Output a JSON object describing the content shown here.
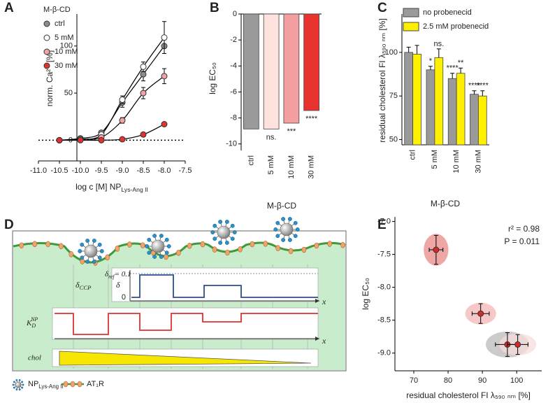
{
  "chart_data": [
    {
      "type": "line",
      "panel": "A",
      "xlabel": {
        "text": "log c [M] NP",
        "subscript": "Lys-Ang II"
      },
      "ylabel": "norm. Ca²⁺ [%]",
      "legend_title": "M-β-CD",
      "x": [
        -10.5,
        -10,
        -9.5,
        -9,
        -8.5,
        -8
      ],
      "series": [
        {
          "name": "ctrl",
          "color": "#8c8c8c",
          "values": [
            0,
            2,
            8,
            40,
            70,
            100
          ],
          "errors": [
            1,
            1,
            2,
            5,
            7,
            8
          ]
        },
        {
          "name": "5 mM",
          "color": "#ffffff",
          "values": [
            0,
            1,
            6,
            43,
            78,
            109
          ],
          "errors": [
            1,
            1,
            2,
            4,
            5,
            17
          ]
        },
        {
          "name": "10 mM",
          "color": "#f4a3a3",
          "values": [
            0,
            1,
            3,
            21,
            50,
            68
          ],
          "errors": [
            1,
            1,
            2,
            3,
            6,
            8
          ]
        },
        {
          "name": "30 mM",
          "color": "#e2312f",
          "values": [
            0,
            0,
            0,
            1,
            6,
            17
          ],
          "errors": [
            1,
            1,
            1,
            1,
            1,
            2
          ]
        }
      ],
      "xlim": [
        -11,
        -7.5
      ],
      "xticks": [
        {
          "value": -11,
          "label": "-11.0"
        },
        -10.5,
        {
          "value": -10,
          "label": "-10.0"
        },
        -9.5,
        {
          "value": -9,
          "label": "-9.0"
        },
        -8.5,
        {
          "value": -8,
          "label": "-8.0"
        },
        -7.5
      ],
      "ylim": [
        -22,
        134
      ],
      "yticks": [
        0,
        50,
        100
      ],
      "zero_line": true
    },
    {
      "type": "bar",
      "panel": "B",
      "ylabel": "log EC₅₀",
      "xlabel": "M-β-CD",
      "categories": [
        "ctrl",
        "5 mM",
        "10 mM",
        "30 mM"
      ],
      "values": [
        -8.85,
        -8.85,
        -8.4,
        -7.43
      ],
      "colors": [
        "#9a9a9a",
        "#fde2de",
        "#f4a0a0",
        "#e8332f"
      ],
      "annotations": [
        null,
        "ns.",
        "***",
        "****"
      ],
      "ylim": [
        -10.5,
        0
      ],
      "yticks": [
        0,
        -2,
        -4,
        -6,
        -8,
        -10
      ]
    },
    {
      "type": "bar",
      "panel": "C",
      "ylabel": "residual cholesterol FI λ₅₉₀ ₙₘ [%]",
      "xlabel": "M-β-CD",
      "categories": [
        "ctrl",
        "5 mM",
        "10 mM",
        "30 mM"
      ],
      "series": [
        {
          "name": "no probenecid",
          "color": "#9a9a9a",
          "values": [
            100,
            90,
            85,
            76
          ],
          "errors": [
            3,
            2,
            3,
            2
          ],
          "annotations": [
            null,
            "*",
            "****",
            "****"
          ]
        },
        {
          "name": "2.5 mM probenecid",
          "color": "#fff000",
          "values": [
            99,
            97,
            88,
            75
          ],
          "errors": [
            5,
            5,
            3,
            3
          ],
          "annotations": [
            null,
            "ns.",
            "**",
            "****"
          ]
        }
      ],
      "ylim": [
        47,
        122
      ],
      "yticks": [
        50,
        75,
        100
      ]
    },
    {
      "type": "scatter",
      "panel": "E",
      "xlabel": "residual cholesterol FI λ₅₉₀ ₙₘ [%]",
      "ylabel": "log EC₅₀",
      "annotations": [
        "r² = 0.98",
        "P = 0.011"
      ],
      "x": [
        76.5,
        89.5,
        97.3,
        100.3
      ],
      "x_errors": [
        2,
        2.5,
        3.5,
        3
      ],
      "values": [
        -7.43,
        -8.4,
        -8.87,
        -8.87
      ],
      "errors": [
        0.22,
        0.15,
        0.18,
        0.15
      ],
      "color": "#d62a28",
      "colors": [
        "#e98a88",
        "#f3b6b4",
        "#b9b9b9",
        "#f6dcdb"
      ],
      "xlim": [
        64.5,
        107.3
      ],
      "xticks": [
        70,
        80,
        90,
        100
      ],
      "ylim": [
        -9.27,
        -6.93
      ],
      "yticks": [
        {
          "value": -7,
          "label": "-7.0"
        },
        -7.5,
        {
          "value": -8,
          "label": "-8.0"
        },
        -8.5,
        {
          "value": -9,
          "label": "-9.0"
        }
      ]
    }
  ],
  "diagram": {
    "panel": "D",
    "delta_ccp": {
      "symbol": "δ",
      "sub": "CCP"
    },
    "delta": "δ",
    "delta_ref": {
      "symbol": "δ",
      "sub": "ref",
      "value": "= 0.1"
    },
    "zero": "0",
    "x_axis": "x",
    "kd": {
      "symbol": "K",
      "sub": "D",
      "sup": "NP"
    },
    "chol": "chol",
    "legend": {
      "np": {
        "text": "NP",
        "sub": "Lys-Ang II"
      },
      "receptor": "AT₁R"
    }
  }
}
